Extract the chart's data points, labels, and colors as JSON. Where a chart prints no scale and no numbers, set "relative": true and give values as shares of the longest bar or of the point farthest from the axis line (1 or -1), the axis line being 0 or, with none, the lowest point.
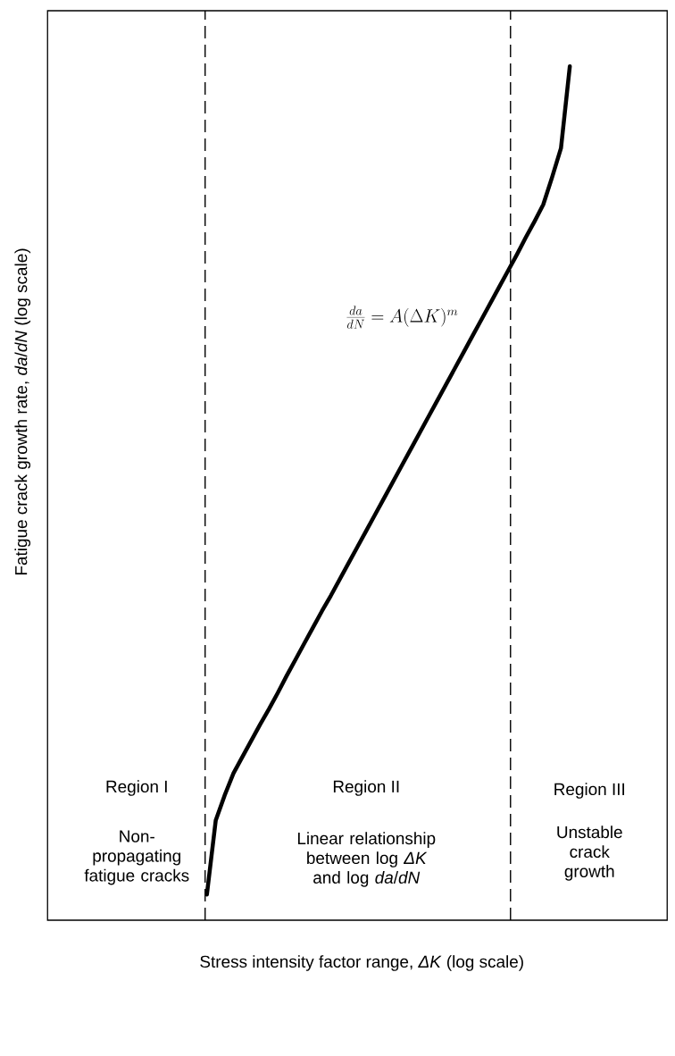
{
  "chart_data": {
    "type": "line",
    "relative": true,
    "tick_labels": false,
    "xlabel": "Stress intensity factor range, *ΔK* (log scale)",
    "ylabel": "Fatigue crack growth rate, *da*/*dN* (log scale)",
    "categories": [
      null,
      null,
      null,
      null,
      null,
      null,
      null,
      null,
      null,
      null,
      null,
      null,
      null,
      null,
      null,
      null,
      null,
      null,
      null,
      null,
      null,
      null,
      null,
      null,
      null,
      null,
      null,
      null,
      null,
      null,
      null,
      null,
      null,
      null,
      null,
      null,
      null,
      null,
      null,
      null,
      null,
      null,
      null,
      null,
      null,
      null,
      null,
      null,
      null,
      null,
      null,
      null,
      null,
      null,
      null,
      null,
      null,
      null,
      null,
      null,
      null,
      null,
      null,
      null,
      null,
      null,
      null,
      null,
      null,
      null,
      null
    ],
    "series": [
      {
        "color": "#000000",
        "line_style": "solid",
        "values": [
          null,
          null,
          null,
          null,
          null,
          null,
          null,
          null,
          null,
          null,
          null,
          null,
          null,
          null,
          null,
          null,
          null,
          null,
          0.03,
          0.117,
          0.146,
          0.172,
          0.191,
          0.21,
          0.229,
          0.247,
          0.266,
          0.286,
          0.305,
          0.324,
          0.343,
          0.362,
          0.38,
          0.399,
          0.418,
          0.437,
          0.456,
          0.475,
          0.494,
          0.513,
          0.532,
          0.551,
          0.57,
          0.589,
          0.608,
          0.627,
          0.646,
          0.665,
          0.684,
          0.703,
          0.722,
          0.741,
          0.76,
          0.779,
          0.799,
          0.818,
          0.838,
          0.87,
          0.904,
          1,
          null,
          null,
          null,
          null,
          null,
          null,
          null,
          null,
          null,
          null,
          null
        ]
      }
    ],
    "annotations": [
      "\\frac{da}{dN} = A(\\Delta K)^m",
      "Region I",
      "Non-propagating fatigue cracks",
      "Region II",
      "Linear relationship between log *ΔK* and log *da*/*dN*",
      "Region III",
      "Unstable crack growth"
    ]
  }
}
